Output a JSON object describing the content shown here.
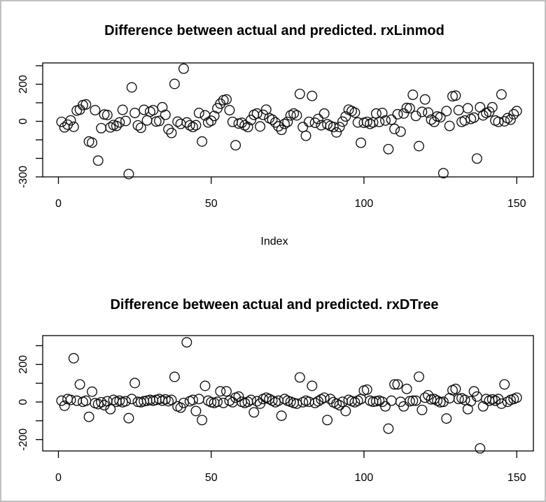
{
  "window": {
    "background": "#ffffff",
    "border_color": "#c0c0c0"
  },
  "chart_data": [
    {
      "type": "scatter",
      "title": "Difference between actual and predicted. rxLinmod",
      "xlabel": "Index",
      "ylabel": "",
      "x_description": "Index 1..150 (x = 1-based position of each value)",
      "xlim": [
        -5,
        156
      ],
      "ylim": [
        -300,
        315
      ],
      "x_ticks": [
        0,
        50,
        100,
        150
      ],
      "y_ticks": [
        300,
        200,
        100,
        0,
        -100,
        -200,
        -300
      ],
      "y_tick_labels_shown": [
        200,
        0,
        -300
      ],
      "grid": "off",
      "marker": "open-circle",
      "values": [
        -3,
        -33,
        -18,
        5,
        -30,
        58,
        63,
        87,
        91,
        -109,
        -115,
        60,
        -212,
        -37,
        37,
        34,
        -33,
        -20,
        -25,
        -6,
        62,
        2,
        -285,
        183,
        45,
        -22,
        -35,
        62,
        5,
        52,
        60,
        -1,
        2,
        76,
        35,
        -43,
        -63,
        202,
        -2,
        -14,
        284,
        -6,
        -22,
        -31,
        -21,
        45,
        -109,
        32,
        -6,
        3,
        29,
        70,
        95,
        114,
        118,
        60,
        -3,
        -129,
        -12,
        -8,
        -22,
        -31,
        7,
        35,
        42,
        -28,
        35,
        63,
        17,
        9,
        -6,
        -27,
        -46,
        -14,
        -3,
        32,
        42,
        32,
        148,
        -31,
        -78,
        -3,
        137,
        -8,
        13,
        -21,
        42,
        -16,
        -25,
        -31,
        -60,
        -31,
        -2,
        26,
        63,
        55,
        47,
        -6,
        -116,
        -8,
        -3,
        -14,
        -6,
        42,
        -3,
        45,
        4,
        -150,
        9,
        -41,
        38,
        -56,
        42,
        72,
        70,
        143,
        29,
        -134,
        51,
        118,
        47,
        9,
        -3,
        26,
        22,
        -280,
        55,
        -25,
        135,
        139,
        60,
        -3,
        4,
        70,
        13,
        20,
        -201,
        76,
        32,
        45,
        51,
        76,
        4,
        -3,
        145,
        0,
        17,
        9,
        38,
        55
      ]
    },
    {
      "type": "scatter",
      "title": "Difference between actual and predicted. rxDTree",
      "xlabel": "",
      "ylabel": "",
      "x_description": "Index 1..150 (x = 1-based position of each value)",
      "xlim": [
        -5,
        156
      ],
      "ylim": [
        -260,
        354
      ],
      "x_ticks": [
        0,
        50,
        100,
        150
      ],
      "y_ticks": [
        300,
        200,
        100,
        0,
        -100,
        -200
      ],
      "y_tick_labels_shown": [
        200,
        0,
        -200
      ],
      "grid": "off",
      "marker": "open-circle",
      "values": [
        7,
        -20,
        16,
        11,
        233,
        7,
        94,
        1,
        7,
        -79,
        55,
        -6,
        -11,
        -1,
        -17,
        4,
        -38,
        11,
        1,
        7,
        -1,
        4,
        -86,
        16,
        101,
        1,
        -1,
        4,
        7,
        11,
        7,
        11,
        16,
        7,
        14,
        4,
        11,
        134,
        -23,
        -30,
        -5,
        318,
        4,
        11,
        -48,
        16,
        -96,
        86,
        7,
        -1,
        -5,
        1,
        57,
        -5,
        57,
        7,
        -1,
        23,
        29,
        1,
        -5,
        1,
        11,
        -55,
        4,
        -9,
        16,
        23,
        16,
        7,
        -1,
        7,
        -73,
        16,
        7,
        1,
        -5,
        -9,
        131,
        -1,
        7,
        1,
        86,
        -5,
        4,
        14,
        23,
        -96,
        16,
        -1,
        -9,
        -17,
        1,
        -48,
        11,
        4,
        -1,
        7,
        16,
        61,
        66,
        7,
        1,
        4,
        7,
        1,
        -23,
        -142,
        7,
        94,
        94,
        1,
        -23,
        70,
        4,
        7,
        7,
        135,
        -42,
        23,
        36,
        14,
        16,
        7,
        -1,
        1,
        -88,
        20,
        63,
        70,
        16,
        20,
        11,
        -38,
        4,
        57,
        29,
        -247,
        -23,
        16,
        7,
        14,
        7,
        16,
        -9,
        94,
        1,
        11,
        16,
        23
      ]
    }
  ]
}
